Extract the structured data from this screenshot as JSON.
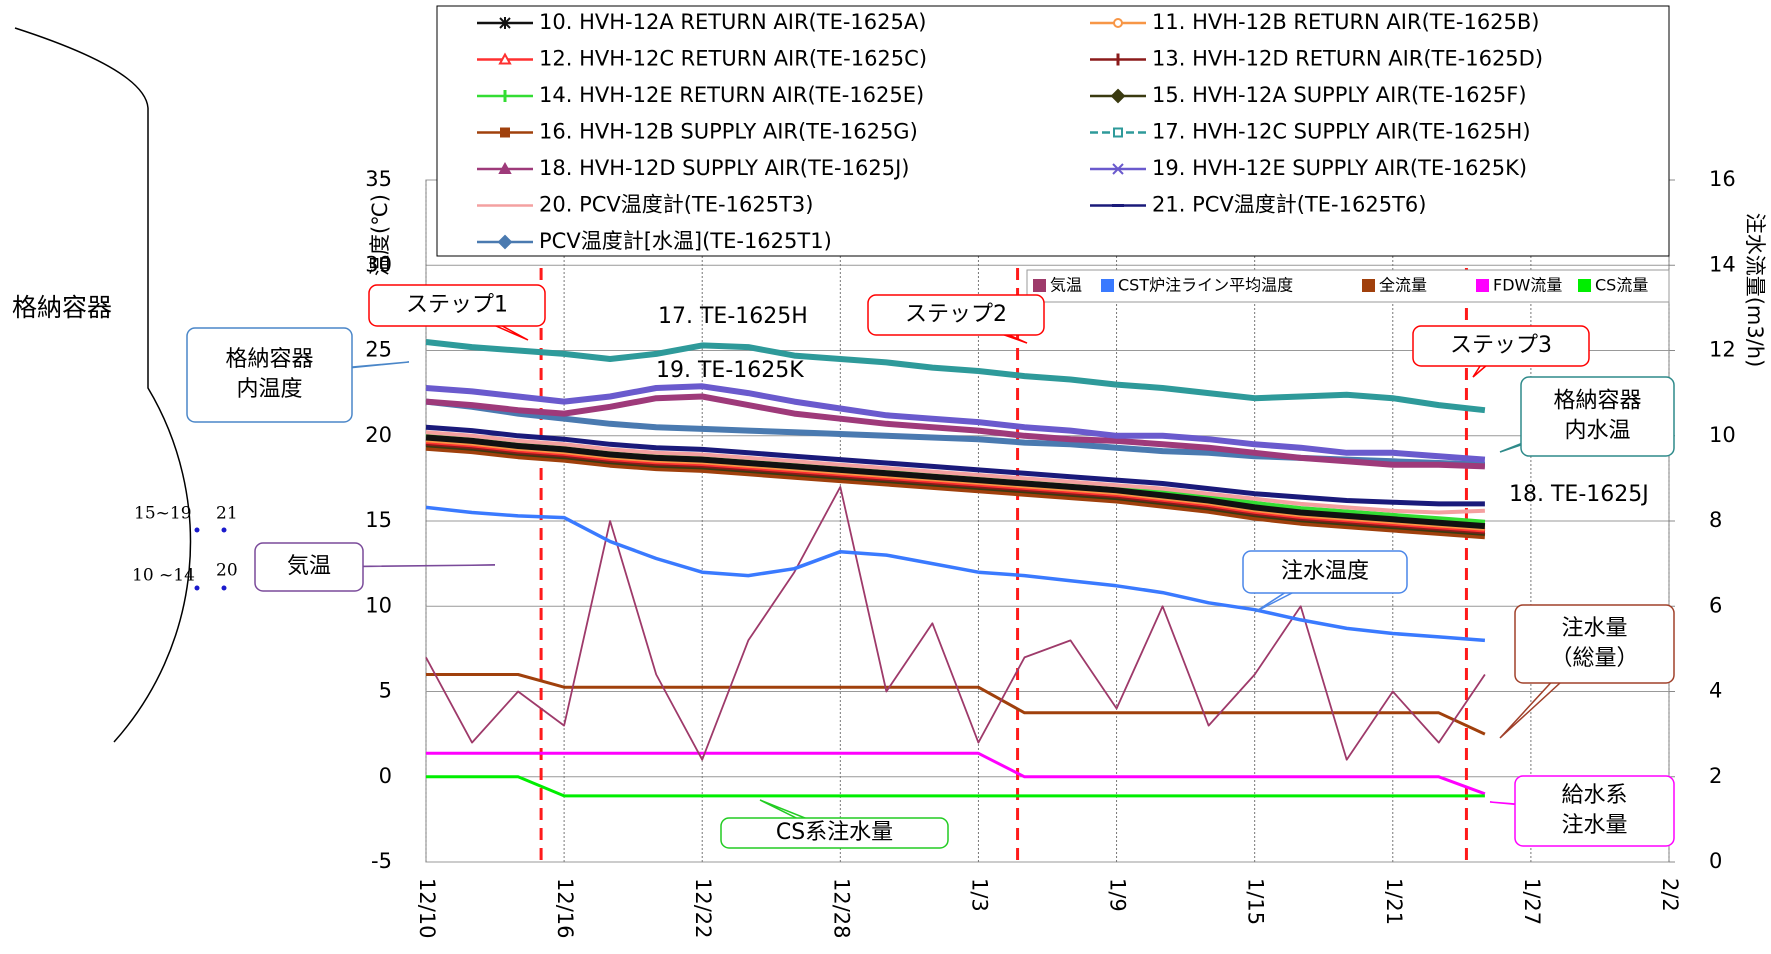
{
  "chart_data": {
    "type": "line",
    "x": [
      "12/10",
      "12/12",
      "12/14",
      "12/16",
      "12/18",
      "12/20",
      "12/22",
      "12/24",
      "12/26",
      "12/28",
      "12/30",
      "1/1",
      "1/3",
      "1/5",
      "1/7",
      "1/9",
      "1/11",
      "1/13",
      "1/15",
      "1/17",
      "1/19",
      "1/21",
      "1/23",
      "1/25"
    ],
    "xlim": [
      "12/10",
      "2/2"
    ],
    "xticks": [
      "12/10",
      "12/16",
      "12/22",
      "12/28",
      "1/3",
      "1/9",
      "1/15",
      "1/21",
      "1/27",
      "2/2"
    ],
    "ylim": [
      -5,
      35
    ],
    "yticks": [
      -5,
      0,
      5,
      10,
      15,
      20,
      25,
      30,
      35
    ],
    "y2lim": [
      0,
      16
    ],
    "y2ticks": [
      0,
      2,
      4,
      6,
      8,
      10,
      12,
      14,
      16
    ],
    "ylabel": "温度(℃)",
    "y2label": "注水流量(m3/h)",
    "grid": true,
    "series": [
      {
        "name": "10. HVH-12A RETURN AIR(TE-1625A)",
        "color": "#111111",
        "marker": "star",
        "values": [
          19.9,
          19.7,
          19.4,
          19.2,
          18.9,
          18.7,
          18.6,
          18.4,
          18.2,
          18.0,
          17.8,
          17.6,
          17.4,
          17.2,
          17.0,
          16.8,
          16.5,
          16.2,
          15.8,
          15.5,
          15.3,
          15.1,
          14.9,
          14.7
        ]
      },
      {
        "name": "11. HVH-12B RETURN AIR(TE-1625B)",
        "color": "#f79646",
        "marker": "circle",
        "values": [
          19.8,
          19.6,
          19.3,
          19.1,
          18.8,
          18.6,
          18.5,
          18.3,
          18.1,
          17.9,
          17.7,
          17.5,
          17.3,
          17.1,
          16.9,
          16.7,
          16.4,
          16.1,
          15.7,
          15.4,
          15.2,
          15.0,
          14.8,
          14.6
        ]
      },
      {
        "name": "12. HVH-12C RETURN AIR(TE-1625C)",
        "color": "#ff3030",
        "marker": "triangle-open",
        "values": [
          19.7,
          19.5,
          19.2,
          19.0,
          18.7,
          18.5,
          18.4,
          18.2,
          18.0,
          17.8,
          17.6,
          17.4,
          17.2,
          17.0,
          16.8,
          16.6,
          16.3,
          16.0,
          15.6,
          15.3,
          15.1,
          14.9,
          14.7,
          14.5
        ]
      },
      {
        "name": "13. HVH-12D RETURN AIR(TE-1625D)",
        "color": "#8b1a1a",
        "marker": "plus",
        "values": [
          19.6,
          19.4,
          19.1,
          18.9,
          18.6,
          18.4,
          18.3,
          18.1,
          17.9,
          17.7,
          17.5,
          17.3,
          17.1,
          16.9,
          16.7,
          16.5,
          16.2,
          15.9,
          15.5,
          15.2,
          15.0,
          14.8,
          14.6,
          14.4
        ]
      },
      {
        "name": "14. HVH-12E RETURN AIR(TE-1625E)",
        "color": "#33dd33",
        "marker": "plus",
        "values": [
          20.1,
          19.9,
          19.6,
          19.4,
          19.1,
          18.9,
          18.8,
          18.6,
          18.4,
          18.2,
          18.0,
          17.8,
          17.6,
          17.4,
          17.2,
          17.0,
          16.7,
          16.4,
          16.0,
          15.7,
          15.5,
          15.3,
          15.1,
          14.9
        ]
      },
      {
        "name": "15. HVH-12A SUPPLY AIR(TE-1625F)",
        "color": "#3a3a10",
        "marker": "diamond",
        "values": [
          19.5,
          19.3,
          19.0,
          18.8,
          18.5,
          18.3,
          18.2,
          18.0,
          17.8,
          17.6,
          17.4,
          17.2,
          17.0,
          16.8,
          16.6,
          16.4,
          16.1,
          15.8,
          15.4,
          15.1,
          14.9,
          14.7,
          14.5,
          14.3
        ]
      },
      {
        "name": "16. HVH-12B SUPPLY AIR(TE-1625G)",
        "color": "#a0400c",
        "marker": "square",
        "values": [
          19.3,
          19.1,
          18.8,
          18.6,
          18.3,
          18.1,
          18.0,
          17.8,
          17.6,
          17.4,
          17.2,
          17.0,
          16.8,
          16.6,
          16.4,
          16.2,
          15.9,
          15.6,
          15.2,
          14.9,
          14.7,
          14.5,
          14.3,
          14.1
        ]
      },
      {
        "name": "17. HVH-12C SUPPLY AIR(TE-1625H)",
        "color": "#2e9a9a",
        "marker": "square-open",
        "values": [
          25.5,
          25.2,
          25.0,
          24.8,
          24.5,
          24.8,
          25.3,
          25.2,
          24.7,
          24.5,
          24.3,
          24.0,
          23.8,
          23.5,
          23.3,
          23.0,
          22.8,
          22.5,
          22.2,
          22.3,
          22.4,
          22.2,
          21.8,
          21.5
        ]
      },
      {
        "name": "18. HVH-12D SUPPLY AIR(TE-1625J)",
        "color": "#9e3a7a",
        "marker": "triangle",
        "values": [
          22.0,
          21.8,
          21.5,
          21.3,
          21.7,
          22.2,
          22.3,
          21.8,
          21.3,
          21.0,
          20.7,
          20.5,
          20.3,
          20.0,
          19.8,
          19.7,
          19.5,
          19.3,
          19.0,
          18.7,
          18.5,
          18.3,
          18.3,
          18.2
        ]
      },
      {
        "name": "19. HVH-12E SUPPLY AIR(TE-1625K)",
        "color": "#6a5acd",
        "marker": "x",
        "values": [
          22.8,
          22.6,
          22.3,
          22.0,
          22.3,
          22.8,
          22.9,
          22.5,
          22.0,
          21.6,
          21.2,
          21.0,
          20.8,
          20.5,
          20.3,
          20.0,
          20.0,
          19.8,
          19.5,
          19.3,
          19.0,
          19.0,
          18.8,
          18.6
        ]
      },
      {
        "name": "20. PCV温度計(TE-1625T3)",
        "color": "#f4a0a0",
        "marker": "none",
        "values": [
          20.2,
          20.0,
          19.7,
          19.5,
          19.2,
          19.0,
          18.9,
          18.7,
          18.5,
          18.3,
          18.1,
          17.9,
          17.7,
          17.5,
          17.3,
          17.1,
          16.9,
          16.6,
          16.3,
          16.0,
          15.8,
          15.6,
          15.5,
          15.6
        ]
      },
      {
        "name": "21. PCV温度計(TE-1625T6)",
        "color": "#1a1a7a",
        "marker": "dash",
        "values": [
          20.5,
          20.3,
          20.0,
          19.8,
          19.5,
          19.3,
          19.2,
          19.0,
          18.8,
          18.6,
          18.4,
          18.2,
          18.0,
          17.8,
          17.6,
          17.4,
          17.2,
          16.9,
          16.6,
          16.4,
          16.2,
          16.1,
          16.0,
          16.0
        ]
      },
      {
        "name": "PCV温度計[水温](TE-1625T1)",
        "color": "#4a7ab0",
        "marker": "diamond",
        "values": [
          22.0,
          21.7,
          21.3,
          21.0,
          20.7,
          20.5,
          20.4,
          20.3,
          20.2,
          20.1,
          20.0,
          19.9,
          19.8,
          19.6,
          19.5,
          19.3,
          19.1,
          19.0,
          18.8,
          18.7,
          18.6,
          18.5,
          18.4,
          18.3
        ]
      },
      {
        "name": "気温",
        "color": "#9e3a6a",
        "values": [
          7,
          2,
          5,
          3,
          15,
          6,
          1,
          8,
          12,
          17,
          5,
          9,
          2,
          7,
          8,
          4,
          10,
          3,
          6,
          10,
          1,
          5,
          2,
          6
        ]
      },
      {
        "name": "CST炉注ライン平均温度",
        "color": "#3a7aff",
        "values": [
          15.8,
          15.5,
          15.3,
          15.2,
          13.8,
          12.8,
          12.0,
          11.8,
          12.2,
          13.2,
          13.0,
          12.5,
          12.0,
          11.8,
          11.5,
          11.2,
          10.8,
          10.2,
          9.8,
          9.2,
          8.7,
          8.4,
          8.2,
          8.0
        ]
      },
      {
        "name": "全流量",
        "color": "#a0400c",
        "axis": "y2",
        "values": [
          4.4,
          4.4,
          4.4,
          4.1,
          4.1,
          4.1,
          4.1,
          4.1,
          4.1,
          4.1,
          4.1,
          4.1,
          4.1,
          3.5,
          3.5,
          3.5,
          3.5,
          3.5,
          3.5,
          3.5,
          3.5,
          3.5,
          3.5,
          3.0
        ]
      },
      {
        "name": "FDW流量",
        "color": "#ff00ff",
        "axis": "y2",
        "values": [
          2.55,
          2.55,
          2.55,
          2.55,
          2.55,
          2.55,
          2.55,
          2.55,
          2.55,
          2.55,
          2.55,
          2.55,
          2.55,
          2.0,
          2.0,
          2.0,
          2.0,
          2.0,
          2.0,
          2.0,
          2.0,
          2.0,
          2.0,
          1.6
        ]
      },
      {
        "name": "CS流量",
        "color": "#00ee00",
        "axis": "y2",
        "values": [
          2.0,
          2.0,
          2.0,
          1.55,
          1.55,
          1.55,
          1.55,
          1.55,
          1.55,
          1.55,
          1.55,
          1.55,
          1.55,
          1.55,
          1.55,
          1.55,
          1.55,
          1.55,
          1.55,
          1.55,
          1.55,
          1.55,
          1.55,
          1.55
        ]
      }
    ],
    "annotations": [
      {
        "lines": [
          "ステップ1"
        ]
      },
      {
        "lines": [
          "ステップ2"
        ]
      },
      {
        "lines": [
          "ステップ3"
        ]
      },
      {
        "lines": [
          "格納容器",
          "内温度"
        ]
      },
      {
        "lines": [
          "格納容器",
          "内水温"
        ]
      },
      {
        "lines": [
          "気温"
        ]
      },
      {
        "lines": [
          "注水温度"
        ]
      },
      {
        "lines": [
          "注水量",
          "（総量）"
        ]
      },
      {
        "lines": [
          "給水系",
          "注水量"
        ]
      },
      {
        "lines": [
          "CS系注水量"
        ]
      }
    ],
    "labels": [
      "17. TE-1625H",
      "19. TE-1625K",
      "18. TE-1625J"
    ]
  },
  "diagram": {
    "title": "格納容器",
    "points": [
      "15~19",
      "21",
      "10 ~14",
      "20"
    ]
  }
}
